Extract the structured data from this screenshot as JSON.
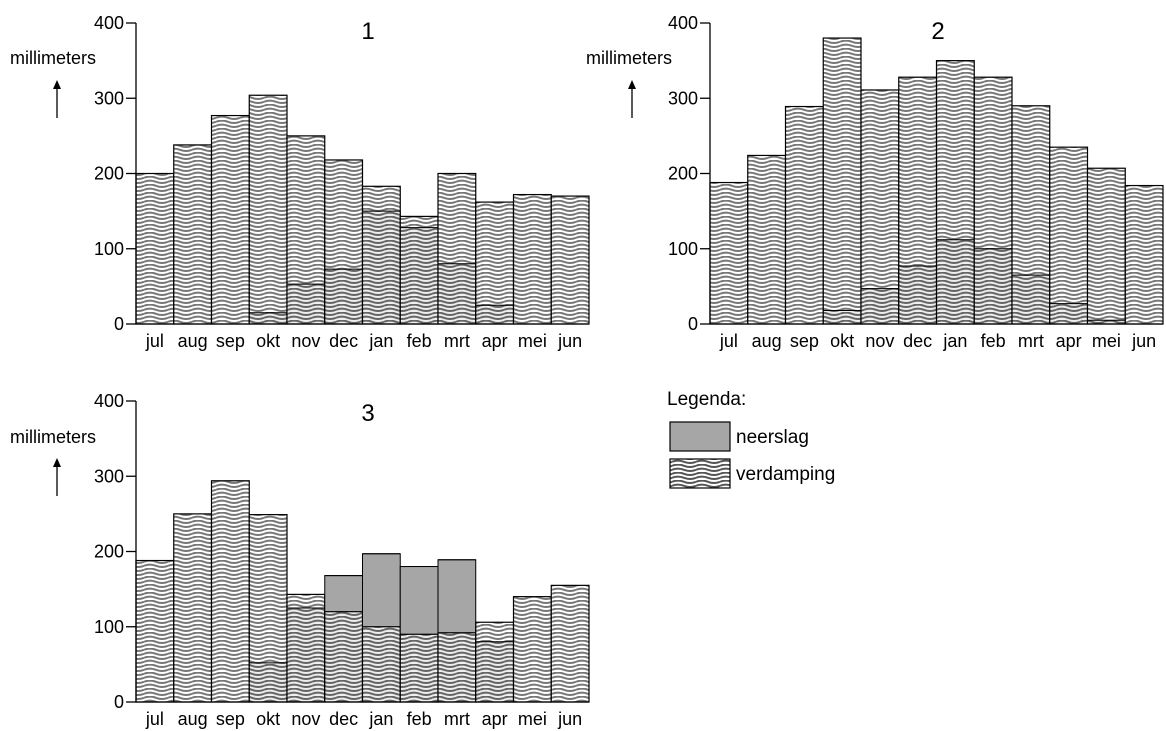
{
  "colors": {
    "neerslag": "#a6a6a6",
    "verdamping_line": "#555555",
    "outline": "#000000"
  },
  "legend": {
    "title": "Legenda:",
    "items": [
      {
        "key": "neerslag",
        "label": "neerslag",
        "pattern": "solid-gray"
      },
      {
        "key": "verdamping",
        "label": "verdamping",
        "pattern": "wavy-lines"
      }
    ]
  },
  "chart_data": [
    {
      "type": "bar",
      "title": "1",
      "ylabel": "millimeters",
      "ylim": [
        0,
        400
      ],
      "yticks": [
        "0",
        "100",
        "200",
        "300",
        "400"
      ],
      "categories": [
        "jul",
        "aug",
        "sep",
        "okt",
        "nov",
        "dec",
        "jan",
        "feb",
        "mrt",
        "apr",
        "mei",
        "jun"
      ],
      "series": [
        {
          "name": "neerslag",
          "values": [
            0,
            0,
            0,
            15,
            53,
            73,
            150,
            128,
            80,
            25,
            0,
            0
          ]
        },
        {
          "name": "verdamping",
          "values": [
            200,
            238,
            277,
            304,
            250,
            218,
            183,
            143,
            200,
            162,
            172,
            170
          ]
        }
      ]
    },
    {
      "type": "bar",
      "title": "2",
      "ylabel": "millimeters",
      "ylim": [
        0,
        400
      ],
      "yticks": [
        "0",
        "100",
        "200",
        "300",
        "400"
      ],
      "categories": [
        "jul",
        "aug",
        "sep",
        "okt",
        "nov",
        "dec",
        "jan",
        "feb",
        "mrt",
        "apr",
        "mei",
        "jun"
      ],
      "series": [
        {
          "name": "neerslag",
          "values": [
            0,
            0,
            0,
            18,
            47,
            77,
            112,
            100,
            65,
            27,
            5,
            0
          ]
        },
        {
          "name": "verdamping",
          "values": [
            188,
            224,
            289,
            380,
            311,
            328,
            350,
            328,
            290,
            235,
            207,
            184
          ]
        }
      ]
    },
    {
      "type": "bar",
      "title": "3",
      "ylabel": "millimeters",
      "ylim": [
        0,
        400
      ],
      "yticks": [
        "0",
        "100",
        "200",
        "300",
        "400"
      ],
      "categories": [
        "jul",
        "aug",
        "sep",
        "okt",
        "nov",
        "dec",
        "jan",
        "feb",
        "mrt",
        "apr",
        "mei",
        "jun"
      ],
      "series": [
        {
          "name": "neerslag",
          "values": [
            0,
            0,
            0,
            52,
            125,
            168,
            197,
            180,
            189,
            80,
            0,
            0
          ]
        },
        {
          "name": "verdamping",
          "values": [
            188,
            250,
            294,
            249,
            143,
            120,
            100,
            90,
            92,
            106,
            140,
            155
          ]
        }
      ]
    }
  ]
}
